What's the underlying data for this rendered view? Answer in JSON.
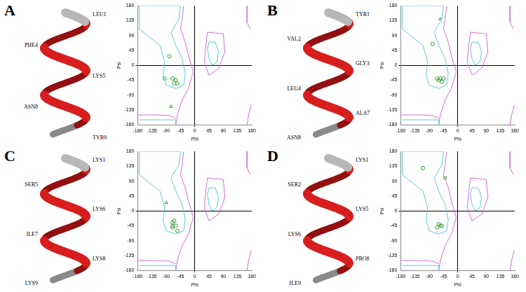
{
  "chart_data": [
    {
      "panel": "A",
      "type": "scatter",
      "residue_labels": [
        "LEU1",
        "PHE4",
        "LYS5",
        "ASN8",
        "TYR9"
      ],
      "x_label": "Phi",
      "y_label": "Psi",
      "xlim": [
        -180,
        180
      ],
      "ylim": [
        -180,
        180
      ],
      "xticks": [
        -180,
        -135,
        -90,
        -45,
        0,
        45,
        90,
        135,
        180
      ],
      "yticks": [
        -180,
        -135,
        -90,
        -45,
        0,
        45,
        90,
        135,
        180
      ],
      "grid": false,
      "series": [
        {
          "marker": "circle",
          "color": "#2e9e2e",
          "x": [
            -80,
            -95,
            -70,
            -60,
            -55,
            -65
          ],
          "y": [
            27,
            -40,
            -40,
            -45,
            -55,
            -55
          ]
        },
        {
          "marker": "triangle",
          "color": "#2e9e2e",
          "x": [
            -75
          ],
          "y": [
            -125
          ]
        }
      ]
    },
    {
      "panel": "B",
      "type": "scatter",
      "residue_labels": [
        "TYR1",
        "VAL2",
        "GLY3",
        "LEU4",
        "ALA7",
        "ASN8"
      ],
      "x_label": "Phi",
      "y_label": "Psi",
      "xlim": [
        -180,
        180
      ],
      "ylim": [
        -180,
        180
      ],
      "xticks": [
        -180,
        -135,
        -90,
        -45,
        0,
        45,
        90,
        135,
        180
      ],
      "yticks": [
        -180,
        -135,
        -90,
        -45,
        0,
        45,
        90,
        135,
        180
      ],
      "grid": false,
      "series": [
        {
          "marker": "circle",
          "color": "#2e9e2e",
          "x": [
            -80,
            -65,
            -60,
            -55,
            -50,
            -45
          ],
          "y": [
            65,
            -40,
            -45,
            -40,
            -50,
            -40
          ]
        },
        {
          "marker": "triangle",
          "color": "#2e9e2e",
          "x": [
            -55
          ],
          "y": [
            140
          ]
        }
      ]
    },
    {
      "panel": "C",
      "type": "scatter",
      "residue_labels": [
        "LYS1",
        "SER5",
        "LYS6",
        "ILE7",
        "LYS8",
        "LYS9"
      ],
      "x_label": "Phi",
      "y_label": "Psi",
      "xlim": [
        -180,
        180
      ],
      "ylim": [
        -180,
        180
      ],
      "xticks": [
        -180,
        -135,
        -90,
        -45,
        0,
        45,
        90,
        135,
        180
      ],
      "yticks": [
        -180,
        -135,
        -90,
        -45,
        0,
        45,
        90,
        135,
        180
      ],
      "grid": false,
      "series": [
        {
          "marker": "circle",
          "color": "#2e9e2e",
          "x": [
            -70,
            -65,
            -60,
            -70,
            -55,
            -70
          ],
          "y": [
            -35,
            -30,
            -45,
            -50,
            -60,
            -45
          ]
        },
        {
          "marker": "triangle",
          "color": "#2e9e2e",
          "x": [
            -90
          ],
          "y": [
            25
          ]
        }
      ]
    },
    {
      "panel": "D",
      "type": "scatter",
      "residue_labels": [
        "LYS1",
        "SER2",
        "LYS5",
        "LYS6",
        "PRO8",
        "ILE9"
      ],
      "x_label": "Phi",
      "y_label": "Psi",
      "xlim": [
        -180,
        180
      ],
      "ylim": [
        -180,
        180
      ],
      "xticks": [
        -180,
        -135,
        -90,
        -45,
        0,
        45,
        90,
        135,
        180
      ],
      "yticks": [
        -180,
        -135,
        -90,
        -45,
        0,
        45,
        90,
        135,
        180
      ],
      "grid": false,
      "series": [
        {
          "marker": "circle",
          "color": "#2e9e2e",
          "x": [
            -110,
            -60,
            -55,
            -65,
            -50
          ],
          "y": [
            130,
            -40,
            -45,
            -50,
            -45
          ]
        },
        {
          "marker": "square",
          "color": "#2e9e2e",
          "x": [
            -40
          ],
          "y": [
            100
          ]
        }
      ]
    }
  ],
  "regions": [
    {
      "color": "#5cc8d4",
      "points": [
        [
          -175,
          180
        ],
        [
          -45,
          180
        ],
        [
          -50,
          140
        ],
        [
          -75,
          100
        ],
        [
          -60,
          60
        ],
        [
          -40,
          20
        ],
        [
          -30,
          -25
        ],
        [
          -35,
          -60
        ],
        [
          -60,
          -70
        ],
        [
          -90,
          -60
        ],
        [
          -100,
          -30
        ],
        [
          -95,
          10
        ],
        [
          -110,
          60
        ],
        [
          -150,
          90
        ],
        [
          -175,
          110
        ],
        [
          -175,
          180
        ]
      ]
    },
    {
      "color": "#5cc8d4",
      "points": [
        [
          -175,
          -165
        ],
        [
          -60,
          -165
        ],
        [
          -60,
          -180
        ]
      ]
    },
    {
      "color": "#5cc8d4",
      "points": [
        [
          45,
          70
        ],
        [
          65,
          70
        ],
        [
          75,
          40
        ],
        [
          70,
          10
        ],
        [
          55,
          0
        ],
        [
          45,
          20
        ],
        [
          40,
          50
        ],
        [
          45,
          70
        ]
      ]
    },
    {
      "color": "#d070d0",
      "points": [
        [
          -35,
          180
        ],
        [
          -40,
          140
        ],
        [
          -45,
          110
        ],
        [
          -30,
          70
        ],
        [
          -20,
          30
        ],
        [
          -5,
          -20
        ],
        [
          -20,
          -70
        ],
        [
          -40,
          -105
        ],
        [
          -55,
          -150
        ],
        [
          -60,
          -180
        ]
      ]
    },
    {
      "color": "#d070d0",
      "points": [
        [
          -180,
          -150
        ],
        [
          -120,
          -150
        ],
        [
          -80,
          -152
        ],
        [
          -60,
          -160
        ]
      ]
    },
    {
      "color": "#d070d0",
      "points": [
        [
          40,
          100
        ],
        [
          90,
          95
        ],
        [
          95,
          40
        ],
        [
          75,
          -10
        ],
        [
          45,
          -30
        ],
        [
          30,
          10
        ],
        [
          35,
          60
        ],
        [
          40,
          100
        ]
      ]
    },
    {
      "color": "#d070d0",
      "points": [
        [
          165,
          180
        ],
        [
          165,
          130
        ],
        [
          175,
          110
        ]
      ]
    },
    {
      "color": "#d070d0",
      "points": [
        [
          165,
          -180
        ],
        [
          170,
          -150
        ],
        [
          178,
          -120
        ]
      ]
    }
  ]
}
